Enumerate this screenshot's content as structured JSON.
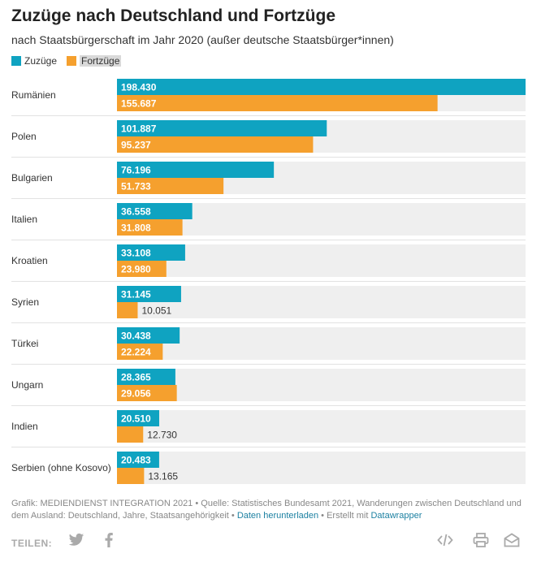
{
  "title": "Zuzüge nach Deutschland und Fortzüge",
  "subtitle": "nach Staatsbürgerschaft im Jahr 2020 (außer deutsche Staatsbürger*innen)",
  "legend": {
    "zuzuege": "Zuzüge",
    "fortzuege": "Fortzüge"
  },
  "colors": {
    "zuzuege": "#0fa3c1",
    "fortzuege": "#f5a02e",
    "row_bg": "#efefef"
  },
  "chart_data": {
    "type": "bar",
    "orientation": "horizontal",
    "xlim": [
      0,
      198430
    ],
    "categories": [
      "Rumänien",
      "Polen",
      "Bulgarien",
      "Italien",
      "Kroatien",
      "Syrien",
      "Türkei",
      "Ungarn",
      "Indien",
      "Serbien (ohne Kosovo)"
    ],
    "series": [
      {
        "name": "Zuzüge",
        "values": [
          198430,
          101887,
          76196,
          36558,
          33108,
          31145,
          30438,
          28365,
          20510,
          20483
        ],
        "labels": [
          "198.430",
          "101.887",
          "76.196",
          "36.558",
          "33.108",
          "31.145",
          "30.438",
          "28.365",
          "20.510",
          "20.483"
        ]
      },
      {
        "name": "Fortzüge",
        "values": [
          155687,
          95237,
          51733,
          31808,
          23980,
          10051,
          22224,
          29056,
          12730,
          13165
        ],
        "labels": [
          "155.687",
          "95.237",
          "51.733",
          "31.808",
          "23.980",
          "10.051",
          "22.224",
          "29.056",
          "12.730",
          "13.165"
        ]
      }
    ]
  },
  "footer": {
    "text_1": "Grafik: MEDIENDIENST INTEGRATION 2021 • Quelle: Statistisches Bundesamt 2021, Wanderungen zwischen Deutschland und dem Ausland: Deutschland, Jahre, Staatsangehörigkeit • ",
    "download_link": "Daten herunterladen",
    "text_2": " • Erstellt mit ",
    "datawrapper_link": "Datawrapper"
  },
  "share": {
    "label": "TEILEN:",
    "icons": [
      "twitter-icon",
      "facebook-icon",
      "embed-icon",
      "print-icon",
      "email-icon"
    ]
  }
}
